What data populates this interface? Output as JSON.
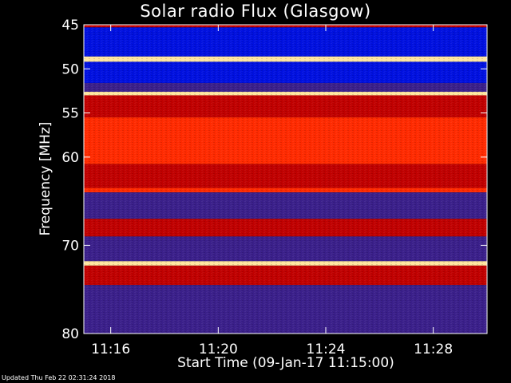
{
  "chart_data": {
    "type": "heatmap",
    "title": "Solar radio Flux (Glasgow)",
    "ylabel": "Frequency [MHz]",
    "xlabel": "Start Time (09-Jan-17 11:15:00)",
    "x_ticks": [
      "11:16",
      "11:20",
      "11:24",
      "11:28"
    ],
    "y_ticks": [
      "45",
      "50",
      "55",
      "60",
      "70",
      "80"
    ],
    "ylim": [
      45,
      80
    ],
    "xlim": [
      "11:15:00",
      "11:30:00"
    ],
    "colors": {
      "low": "#3a1f8a",
      "quiet": "#0010e0",
      "medium": "#c00000",
      "high": "#ff2a00",
      "peak": "#ffe6a0"
    },
    "bands": [
      {
        "from": 45.0,
        "to": 45.3,
        "level": "medium"
      },
      {
        "from": 45.3,
        "to": 46.0,
        "level": "quiet"
      },
      {
        "from": 46.0,
        "to": 48.6,
        "level": "quiet"
      },
      {
        "from": 48.6,
        "to": 49.2,
        "level": "peak"
      },
      {
        "from": 49.2,
        "to": 51.6,
        "level": "quiet"
      },
      {
        "from": 51.6,
        "to": 52.6,
        "level": "low"
      },
      {
        "from": 52.6,
        "to": 53.0,
        "level": "peak"
      },
      {
        "from": 53.0,
        "to": 55.5,
        "level": "medium"
      },
      {
        "from": 55.5,
        "to": 60.8,
        "level": "high"
      },
      {
        "from": 60.8,
        "to": 63.5,
        "level": "medium"
      },
      {
        "from": 63.5,
        "to": 64.0,
        "level": "high"
      },
      {
        "from": 64.0,
        "to": 67.0,
        "level": "low"
      },
      {
        "from": 67.0,
        "to": 69.0,
        "level": "medium"
      },
      {
        "from": 69.0,
        "to": 71.8,
        "level": "low"
      },
      {
        "from": 71.8,
        "to": 72.3,
        "level": "peak"
      },
      {
        "from": 72.3,
        "to": 74.5,
        "level": "medium"
      },
      {
        "from": 74.5,
        "to": 80.0,
        "level": "low"
      }
    ],
    "footer": "Updated Thu Feb 22 02:31:24 2018"
  }
}
